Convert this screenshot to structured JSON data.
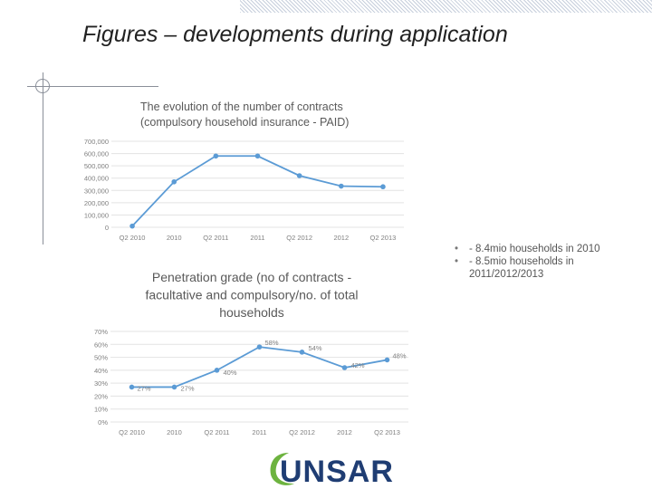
{
  "slide": {
    "title": "Figures – developments during application",
    "notes": [
      "- 8.4mio households in 2010",
      "- 8.5mio households in 2011/2012/2013"
    ],
    "note_bullet": "•",
    "logo_text": "UNSAR"
  },
  "colors": {
    "series": "#5b9bd5",
    "grid": "#e3e3e3",
    "axis_text": "#7f7f7f",
    "title_text": "#595959",
    "logo_green": "#6db33f",
    "logo_blue": "#1f3d73"
  },
  "chart_data": [
    {
      "type": "line",
      "title": "The evolution of the number of contracts (compulsory household insurance - PAID)",
      "title_lines": [
        "The evolution of the number of contracts",
        "(compulsory household insurance - PAID)"
      ],
      "categories": [
        "Q2 2010",
        "2010",
        "Q2 2011",
        "2011",
        "Q2 2012",
        "2012",
        "Q2 2013"
      ],
      "values": [
        10000,
        370000,
        580000,
        580000,
        420000,
        335000,
        330000
      ],
      "ylim": [
        0,
        700000
      ],
      "yticks": [
        0,
        100000,
        200000,
        300000,
        400000,
        500000,
        600000,
        700000
      ],
      "ytick_labels": [
        "0",
        "100,000",
        "200,000",
        "300,000",
        "400,000",
        "500,000",
        "600,000",
        "700,000"
      ],
      "grid": true,
      "legend": "none"
    },
    {
      "type": "line",
      "title": "Penetration grade (no of contracts - facultative and compulsory/no. of total households",
      "title_lines": [
        "Penetration grade (no of contracts -",
        "facultative and compulsory/no. of total",
        "households"
      ],
      "categories": [
        "Q2 2010",
        "2010",
        "Q2 2011",
        "2011",
        "Q2 2012",
        "2012",
        "Q2 2013"
      ],
      "values": [
        27,
        27,
        40,
        58,
        54,
        42,
        48
      ],
      "data_labels": [
        "27%",
        "27%",
        "40%",
        "58%",
        "54%",
        "42%",
        "48%"
      ],
      "ylim": [
        0,
        70
      ],
      "yticks": [
        0,
        10,
        20,
        30,
        40,
        50,
        60,
        70
      ],
      "ytick_labels": [
        "0%",
        "10%",
        "20%",
        "30%",
        "40%",
        "50%",
        "60%",
        "70%"
      ],
      "grid": true,
      "legend": "none"
    }
  ]
}
